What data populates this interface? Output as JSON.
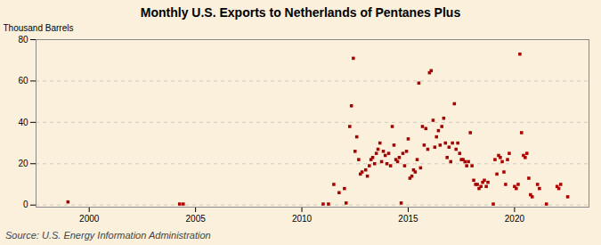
{
  "chart_data": {
    "type": "scatter",
    "title": "Monthly U.S. Exports to Netherlands of Pentanes Plus",
    "ylabel": "Thousand Barrels",
    "annotations": [
      "Source: U.S. Energy Information Administration"
    ],
    "color": "#AA0000",
    "marker": "square",
    "grid": "y",
    "xlim": [
      1997.5,
      2023.5
    ],
    "ylim": [
      -1,
      80
    ],
    "xticks": [
      2000,
      2005,
      2010,
      2015,
      2020
    ],
    "yticks": [
      0,
      20,
      40,
      60,
      80
    ],
    "x": [
      1999.0,
      2004.25,
      2004.42,
      2011.0,
      2011.25,
      2011.5,
      2011.75,
      2012.0,
      2012.08,
      2012.25,
      2012.33,
      2012.42,
      2012.5,
      2012.58,
      2012.67,
      2012.75,
      2012.83,
      2013.0,
      2013.08,
      2013.17,
      2013.25,
      2013.33,
      2013.42,
      2013.5,
      2013.58,
      2013.67,
      2013.75,
      2013.83,
      2013.92,
      2014.0,
      2014.08,
      2014.17,
      2014.25,
      2014.33,
      2014.42,
      2014.5,
      2014.58,
      2014.67,
      2014.75,
      2014.83,
      2014.92,
      2015.0,
      2015.08,
      2015.17,
      2015.25,
      2015.33,
      2015.42,
      2015.5,
      2015.58,
      2015.67,
      2015.75,
      2015.83,
      2015.92,
      2016.0,
      2016.08,
      2016.17,
      2016.25,
      2016.33,
      2016.42,
      2016.5,
      2016.58,
      2016.67,
      2016.75,
      2016.83,
      2016.92,
      2017.0,
      2017.08,
      2017.17,
      2017.25,
      2017.33,
      2017.42,
      2017.5,
      2017.58,
      2017.67,
      2017.75,
      2017.83,
      2017.92,
      2018.0,
      2018.08,
      2018.17,
      2018.25,
      2018.33,
      2018.42,
      2018.5,
      2018.58,
      2018.67,
      2018.75,
      2019.0,
      2019.08,
      2019.17,
      2019.25,
      2019.33,
      2019.42,
      2019.5,
      2019.58,
      2019.67,
      2019.75,
      2020.0,
      2020.08,
      2020.17,
      2020.25,
      2020.33,
      2020.42,
      2020.5,
      2020.58,
      2020.67,
      2020.75,
      2020.83,
      2021.08,
      2021.17,
      2021.5,
      2022.0,
      2022.08,
      2022.17,
      2022.5
    ],
    "values": [
      1.5,
      0.5,
      0.5,
      0.5,
      0.5,
      10.0,
      6.0,
      8.0,
      1.0,
      38.0,
      48.0,
      71.0,
      26.0,
      33.0,
      22.0,
      15.0,
      16.0,
      17.0,
      14.0,
      19.0,
      22.0,
      23.0,
      20.0,
      25.0,
      27.0,
      30.0,
      21.0,
      26.0,
      24.0,
      20.0,
      25.0,
      19.0,
      38.0,
      29.0,
      22.0,
      21.0,
      23.0,
      1.0,
      25.0,
      19.0,
      26.0,
      32.0,
      13.0,
      14.0,
      17.0,
      16.0,
      22.0,
      59.0,
      18.0,
      38.0,
      29.0,
      37.0,
      27.0,
      64.0,
      65.0,
      41.0,
      28.0,
      33.0,
      36.0,
      29.0,
      38.0,
      42.0,
      30.0,
      23.0,
      28.0,
      21.0,
      30.0,
      49.0,
      27.0,
      30.0,
      25.0,
      22.0,
      22.0,
      21.0,
      19.0,
      21.0,
      35.0,
      19.0,
      12.0,
      10.0,
      10.0,
      8.0,
      9.0,
      11.0,
      12.0,
      9.0,
      11.0,
      0.5,
      22.0,
      15.0,
      24.0,
      23.0,
      21.0,
      16.0,
      10.0,
      22.0,
      25.0,
      9.0,
      8.0,
      10.0,
      73.0,
      35.0,
      24.0,
      23.0,
      25.0,
      13.0,
      5.0,
      4.0,
      10.0,
      8.0,
      0.5,
      9.0,
      8.0,
      10.0,
      4.0
    ]
  }
}
